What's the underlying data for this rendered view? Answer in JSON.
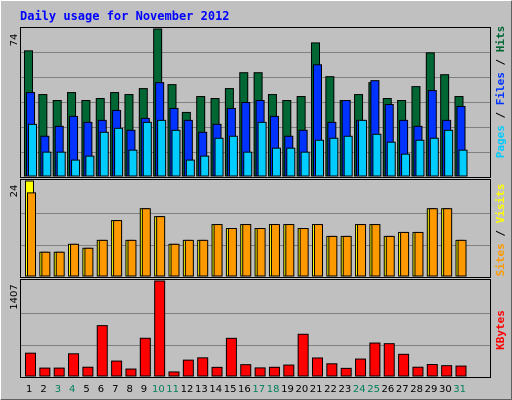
{
  "chart_data": [
    {
      "type": "bar",
      "title": "Daily usage for November 2012",
      "categories": [
        "1",
        "2",
        "3",
        "4",
        "5",
        "6",
        "7",
        "8",
        "9",
        "10",
        "11",
        "12",
        "13",
        "14",
        "15",
        "16",
        "17",
        "18",
        "19",
        "20",
        "21",
        "22",
        "23",
        "24",
        "25",
        "26",
        "27",
        "28",
        "29",
        "30",
        "31"
      ],
      "weekend_days": [
        "3",
        "4",
        "10",
        "11",
        "17",
        "18",
        "24",
        "25",
        "31"
      ],
      "ymax_label": "74",
      "ymax": 74,
      "legend": [
        "Pages",
        "Files",
        "Hits"
      ],
      "series": [
        {
          "name": "Hits",
          "color": "#006633",
          "values": [
            63,
            41,
            38,
            42,
            38,
            39,
            42,
            41,
            44,
            74,
            46,
            32,
            40,
            39,
            44,
            52,
            52,
            41,
            38,
            40,
            67,
            50,
            38,
            41,
            47,
            39,
            38,
            45,
            62,
            51,
            40
          ]
        },
        {
          "name": "Files",
          "color": "#0033FF",
          "values": [
            42,
            20,
            25,
            30,
            27,
            28,
            33,
            23,
            29,
            47,
            34,
            28,
            22,
            26,
            34,
            37,
            38,
            30,
            20,
            23,
            56,
            27,
            38,
            28,
            48,
            36,
            28,
            25,
            43,
            28,
            35
          ]
        },
        {
          "name": "Pages",
          "color": "#00CCFF",
          "values": [
            26,
            12,
            12,
            8,
            10,
            22,
            24,
            13,
            27,
            28,
            23,
            8,
            10,
            19,
            20,
            12,
            27,
            14,
            14,
            12,
            18,
            19,
            20,
            28,
            21,
            17,
            11,
            18,
            19,
            23,
            13
          ]
        }
      ]
    },
    {
      "type": "bar",
      "ymax_label": "24",
      "ymax": 24,
      "legend": [
        "Sites",
        "Visits"
      ],
      "series": [
        {
          "name": "Visits",
          "color": "#FFFF00",
          "values": [
            24,
            6,
            6,
            8,
            7,
            9,
            14,
            9,
            17,
            15,
            8,
            9,
            9,
            13,
            12,
            13,
            12,
            13,
            13,
            12,
            13,
            10,
            10,
            13,
            13,
            10,
            11,
            11,
            17,
            17,
            9
          ]
        },
        {
          "name": "Sites",
          "color": "#FF9900",
          "values": [
            21,
            6,
            6,
            8,
            7,
            9,
            14,
            9,
            17,
            15,
            8,
            9,
            9,
            13,
            12,
            13,
            12,
            13,
            13,
            12,
            13,
            10,
            10,
            13,
            13,
            10,
            11,
            11,
            17,
            17,
            9
          ]
        }
      ]
    },
    {
      "type": "bar",
      "ymax_label": "1407",
      "ymax": 1407,
      "legend": [
        "KBytes"
      ],
      "series": [
        {
          "name": "KBytes",
          "color": "#FF0000",
          "values": [
            338,
            117,
            117,
            329,
            130,
            746,
            221,
            103,
            559,
            1407,
            60,
            235,
            269,
            128,
            558,
            168,
            120,
            129,
            162,
            618,
            267,
            181,
            113,
            251,
            488,
            479,
            321,
            130,
            170,
            153,
            147
          ]
        }
      ]
    }
  ],
  "colors": {
    "background": "#C0C0C0",
    "title": "#0000FF",
    "grid": "#808080",
    "weekday_label": "#000000",
    "weekend_label": "#00805C",
    "legend_sep": "#000000"
  }
}
